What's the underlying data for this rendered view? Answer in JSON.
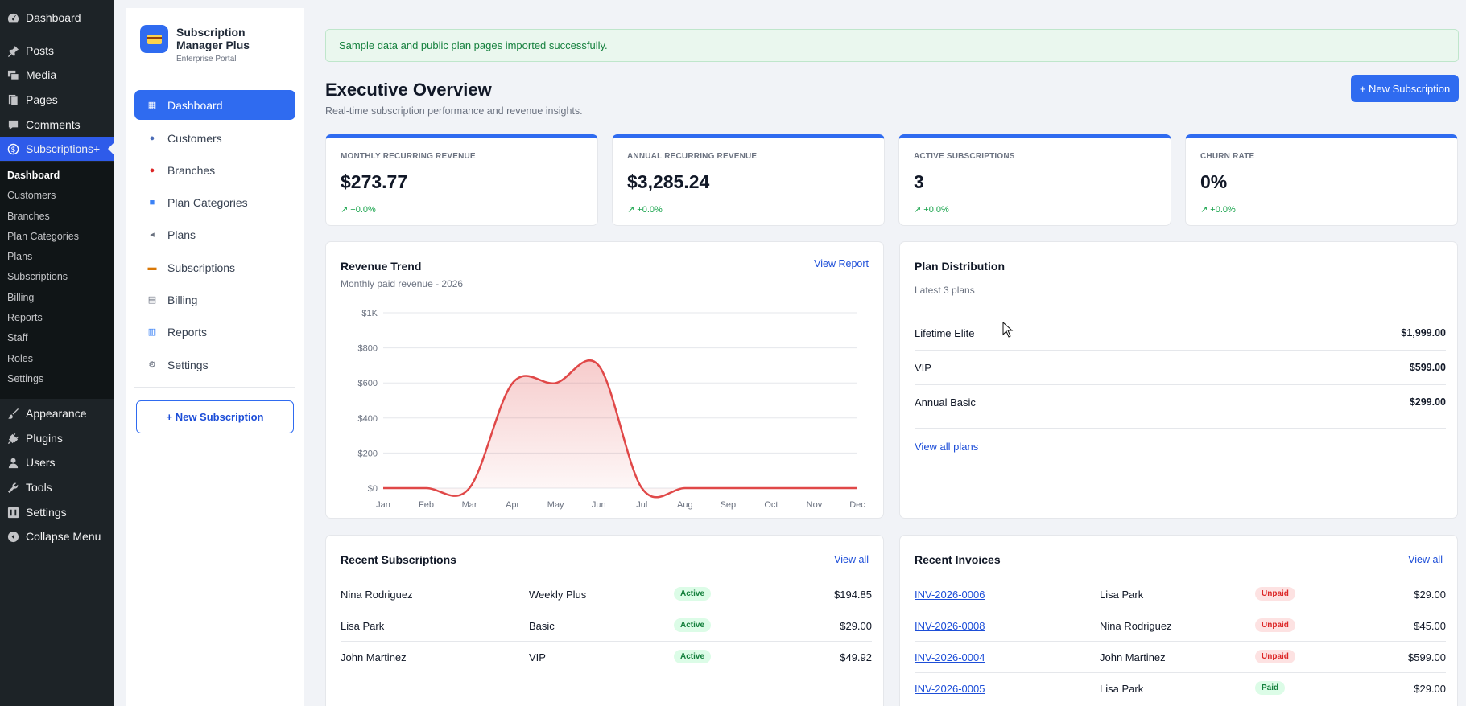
{
  "wp_menu": {
    "items": [
      {
        "label": "Dashboard",
        "icon": "dashboard-icon"
      },
      {
        "label": "Posts",
        "icon": "pin-icon"
      },
      {
        "label": "Media",
        "icon": "media-icon"
      },
      {
        "label": "Pages",
        "icon": "pages-icon"
      },
      {
        "label": "Comments",
        "icon": "comment-icon"
      },
      {
        "label": "Subscriptions+",
        "icon": "dollar-icon"
      },
      {
        "label": "Appearance",
        "icon": "brush-icon"
      },
      {
        "label": "Plugins",
        "icon": "plug-icon"
      },
      {
        "label": "Users",
        "icon": "user-icon"
      },
      {
        "label": "Tools",
        "icon": "wrench-icon"
      },
      {
        "label": "Settings",
        "icon": "settings-icon"
      },
      {
        "label": "Collapse Menu",
        "icon": "collapse-icon"
      }
    ],
    "submenu": [
      "Dashboard",
      "Customers",
      "Branches",
      "Plan Categories",
      "Plans",
      "Subscriptions",
      "Billing",
      "Reports",
      "Staff",
      "Roles",
      "Settings"
    ]
  },
  "plugin": {
    "name": "Subscription Manager Plus",
    "subtitle": "Enterprise Portal",
    "nav": [
      {
        "label": "Dashboard",
        "icon": "dashboard-icon"
      },
      {
        "label": "Customers",
        "icon": "customers-icon"
      },
      {
        "label": "Branches",
        "icon": "pin-icon"
      },
      {
        "label": "Plan Categories",
        "icon": "folder-icon"
      },
      {
        "label": "Plans",
        "icon": "tag-icon"
      },
      {
        "label": "Subscriptions",
        "icon": "card-icon"
      },
      {
        "label": "Billing",
        "icon": "receipt-icon"
      },
      {
        "label": "Reports",
        "icon": "chart-icon"
      },
      {
        "label": "Settings",
        "icon": "gear-icon"
      }
    ],
    "new_button": "+  New Subscription"
  },
  "notice": "Sample data and public plan pages imported successfully.",
  "header": {
    "title": "Executive Overview",
    "subtitle": "Real-time subscription performance and revenue insights.",
    "new_button": "+ New Subscription"
  },
  "kpis": [
    {
      "label": "MONTHLY RECURRING REVENUE",
      "value": "$273.77",
      "delta": "↗ +0.0%"
    },
    {
      "label": "ANNUAL RECURRING REVENUE",
      "value": "$3,285.24",
      "delta": "↗ +0.0%"
    },
    {
      "label": "ACTIVE SUBSCRIPTIONS",
      "value": "3",
      "delta": "↗ +0.0%"
    },
    {
      "label": "CHURN RATE",
      "value": "0%",
      "delta": "↗ +0.0%"
    }
  ],
  "revenue_card": {
    "title": "Revenue Trend",
    "subtitle": "Monthly paid revenue - 2026",
    "link": "View Report"
  },
  "chart_data": {
    "type": "area",
    "categories": [
      "Jan",
      "Feb",
      "Mar",
      "Apr",
      "May",
      "Jun",
      "Jul",
      "Aug",
      "Sep",
      "Oct",
      "Nov",
      "Dec"
    ],
    "series": [
      {
        "values": [
          0,
          0,
          0,
          599,
          599,
          699,
          0,
          0,
          0,
          0,
          0,
          0
        ]
      }
    ],
    "yticks": [
      "$0",
      "$200",
      "$400",
      "$600",
      "$800",
      "$1K"
    ],
    "ylim": [
      0,
      1000
    ],
    "line_color": "#e04848",
    "grid": true
  },
  "plan_card": {
    "title": "Plan Distribution",
    "subtitle": "Latest 3 plans",
    "rows": [
      {
        "name": "Lifetime Elite",
        "price": "$1,999.00"
      },
      {
        "name": "VIP",
        "price": "$599.00"
      },
      {
        "name": "Annual Basic",
        "price": "$299.00"
      }
    ],
    "link": "View all plans"
  },
  "subs_card": {
    "title": "Recent Subscriptions",
    "link": "View all",
    "rows": [
      {
        "customer": "Nina Rodriguez",
        "plan": "Weekly Plus",
        "status": "Active",
        "amount": "$194.85"
      },
      {
        "customer": "Lisa Park",
        "plan": "Basic",
        "status": "Active",
        "amount": "$29.00"
      },
      {
        "customer": "John Martinez",
        "plan": "VIP",
        "status": "Active",
        "amount": "$49.92"
      }
    ]
  },
  "inv_card": {
    "title": "Recent Invoices",
    "link": "View all",
    "rows": [
      {
        "invoice": "INV-2026-0006",
        "customer": "Lisa Park",
        "status": "Unpaid",
        "amount": "$29.00"
      },
      {
        "invoice": "INV-2026-0008",
        "customer": "Nina Rodriguez",
        "status": "Unpaid",
        "amount": "$45.00"
      },
      {
        "invoice": "INV-2026-0004",
        "customer": "John Martinez",
        "status": "Unpaid",
        "amount": "$599.00"
      },
      {
        "invoice": "INV-2026-0005",
        "customer": "Lisa Park",
        "status": "Paid",
        "amount": "$29.00"
      }
    ]
  }
}
